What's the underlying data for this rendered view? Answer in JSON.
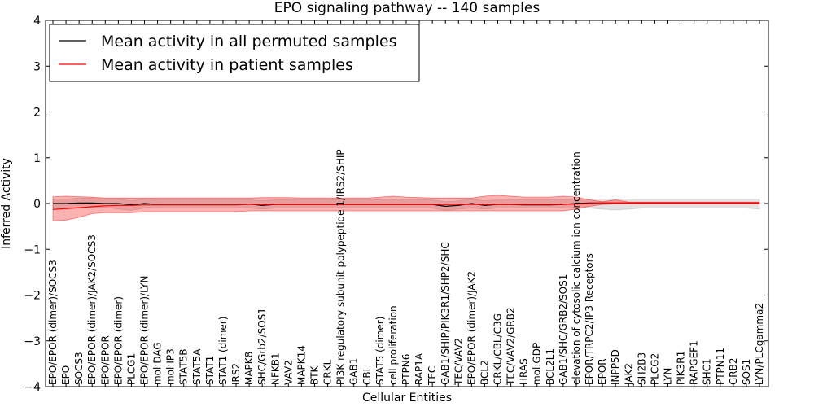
{
  "chart_data": {
    "type": "line",
    "title": "EPO signaling pathway -- 140 samples",
    "xlabel": "Cellular Entities",
    "ylabel": "Inferred Activity",
    "ylim": [
      -4,
      4
    ],
    "yticks": [
      "−4",
      "−3",
      "−2",
      "−1",
      "0",
      "1",
      "2",
      "3",
      "4"
    ],
    "legend": {
      "position": "top-left"
    },
    "categories": [
      "EPO/EPOR (dimer)/SOCS3",
      "EPO",
      "SOCS3",
      "EPO/EPOR (dimer)/JAK2/SOCS3",
      "EPO/EPOR",
      "EPO/EPOR (dimer)",
      "PLCG1",
      "EPO/EPOR (dimer)/LYN",
      "mol:DAG",
      "mol:IP3",
      "STAT5B",
      "STAT5A",
      "STAT1",
      "STAT1 (dimer)",
      "IRS2",
      "MAPK8",
      "SHC/Grb2/SOS1",
      "NFKB1",
      "VAV2",
      "MAPK14",
      "BTK",
      "CRKL",
      "PI3K regulatory subunit polypeptide 1/IRS2/SHIP",
      "GAB1",
      "CBL",
      "STAT5 (dimer)",
      "cell proliferation",
      "PTPN6",
      "RAP1A",
      "TEC",
      "GAB1/SHIP/PIK3R1/SHP2/SHC",
      "TEC/VAV2",
      "EPO/EPOR (dimer)/JAK2",
      "BCL2",
      "CRKL/CBL/C3G",
      "TEC/VAV2/GRB2",
      "HRAS",
      "mol:GDP",
      "BCL2L1",
      "GAB1/SHC/GRB2/SOS1",
      "elevation of cytosolic calcium ion concentration",
      "EPOR/TRPC2/IP3 Receptors",
      "EPOR",
      "INPP5D",
      "JAK2",
      "SH2B3",
      "PLCG2",
      "LYN",
      "PIK3R1",
      "RAPGEF1",
      "SHC1",
      "PTPN11",
      "GRB2",
      "SOS1",
      "LYN/PLCgamma2"
    ],
    "series": [
      {
        "name": "Mean activity in all permuted samples",
        "color": "#000000",
        "values": [
          0.0,
          0.0,
          0.01,
          0.01,
          0.0,
          0.0,
          -0.03,
          0.0,
          -0.02,
          -0.02,
          -0.02,
          -0.02,
          -0.02,
          -0.02,
          -0.02,
          -0.01,
          -0.04,
          -0.02,
          -0.02,
          -0.02,
          -0.02,
          -0.02,
          -0.02,
          -0.02,
          -0.02,
          -0.02,
          -0.02,
          -0.02,
          -0.02,
          -0.02,
          -0.06,
          -0.04,
          0.0,
          -0.04,
          -0.02,
          -0.02,
          -0.03,
          -0.03,
          -0.03,
          -0.02,
          0.0,
          0.01,
          0.01,
          0.01,
          0.01,
          0.01,
          0.01,
          0.01,
          0.01,
          0.01,
          0.01,
          0.01,
          0.01,
          0.01,
          0.01
        ],
        "band_low": [
          -0.12,
          -0.12,
          -0.1,
          -0.08,
          -0.08,
          -0.12,
          -0.15,
          -0.1,
          -0.1,
          -0.1,
          -0.1,
          -0.1,
          -0.1,
          -0.1,
          -0.1,
          -0.1,
          -0.12,
          -0.1,
          -0.1,
          -0.1,
          -0.1,
          -0.1,
          -0.1,
          -0.1,
          -0.1,
          -0.1,
          -0.1,
          -0.1,
          -0.1,
          -0.1,
          -0.15,
          -0.12,
          -0.1,
          -0.12,
          -0.1,
          -0.1,
          -0.1,
          -0.1,
          -0.1,
          -0.1,
          -0.1,
          -0.1,
          -0.12,
          -0.14,
          -0.12,
          -0.1,
          -0.1,
          -0.1,
          -0.1,
          -0.1,
          -0.1,
          -0.1,
          -0.1,
          -0.1,
          -0.12
        ],
        "band_high": [
          0.1,
          0.1,
          0.12,
          0.12,
          0.1,
          0.1,
          0.06,
          0.1,
          0.08,
          0.08,
          0.08,
          0.08,
          0.08,
          0.08,
          0.08,
          0.08,
          0.06,
          0.08,
          0.08,
          0.08,
          0.08,
          0.08,
          0.08,
          0.08,
          0.08,
          0.08,
          0.08,
          0.08,
          0.08,
          0.08,
          0.04,
          0.06,
          0.1,
          0.06,
          0.08,
          0.08,
          0.08,
          0.08,
          0.08,
          0.08,
          0.1,
          0.1,
          0.1,
          0.1,
          0.1,
          0.1,
          0.1,
          0.1,
          0.1,
          0.1,
          0.1,
          0.1,
          0.1,
          0.1,
          0.1
        ],
        "band_color": "#aaaaaa"
      },
      {
        "name": "Mean activity in patient samples",
        "color": "#ff0000",
        "values": [
          -0.13,
          -0.11,
          -0.09,
          -0.07,
          -0.05,
          -0.04,
          -0.04,
          -0.03,
          -0.03,
          -0.03,
          -0.03,
          -0.03,
          -0.03,
          -0.03,
          -0.03,
          -0.02,
          -0.02,
          -0.02,
          -0.02,
          -0.02,
          -0.02,
          -0.02,
          -0.02,
          -0.02,
          -0.02,
          -0.02,
          -0.02,
          -0.02,
          -0.02,
          -0.02,
          -0.02,
          -0.02,
          -0.02,
          -0.02,
          -0.02,
          -0.02,
          -0.02,
          -0.02,
          -0.02,
          -0.02,
          -0.01,
          0.0,
          0.01,
          0.01,
          0.01,
          0.01,
          0.01,
          0.01,
          0.01,
          0.01,
          0.01,
          0.01,
          0.01,
          0.01,
          0.01
        ],
        "band_low": [
          -0.38,
          -0.36,
          -0.3,
          -0.22,
          -0.2,
          -0.2,
          -0.2,
          -0.18,
          -0.18,
          -0.18,
          -0.18,
          -0.18,
          -0.18,
          -0.18,
          -0.18,
          -0.16,
          -0.16,
          -0.16,
          -0.16,
          -0.16,
          -0.16,
          -0.16,
          -0.16,
          -0.16,
          -0.16,
          -0.16,
          -0.16,
          -0.16,
          -0.16,
          -0.16,
          -0.16,
          -0.16,
          -0.16,
          -0.16,
          -0.16,
          -0.16,
          -0.16,
          -0.16,
          -0.16,
          -0.16,
          -0.12,
          -0.06,
          -0.02,
          -0.01,
          -0.01,
          -0.01,
          -0.01,
          -0.01,
          -0.01,
          -0.01,
          -0.01,
          -0.01,
          -0.01,
          -0.01,
          -0.01
        ],
        "band_high": [
          0.15,
          0.16,
          0.15,
          0.14,
          0.12,
          0.12,
          0.12,
          0.12,
          0.12,
          0.12,
          0.12,
          0.12,
          0.12,
          0.12,
          0.12,
          0.12,
          0.13,
          0.13,
          0.13,
          0.12,
          0.12,
          0.12,
          0.12,
          0.12,
          0.12,
          0.14,
          0.16,
          0.14,
          0.13,
          0.12,
          0.12,
          0.12,
          0.12,
          0.16,
          0.18,
          0.16,
          0.14,
          0.14,
          0.14,
          0.16,
          0.14,
          0.08,
          0.04,
          0.08,
          0.03,
          0.03,
          0.03,
          0.03,
          0.03,
          0.03,
          0.03,
          0.03,
          0.03,
          0.03,
          0.03
        ],
        "band_color": "#ff0000"
      }
    ]
  }
}
